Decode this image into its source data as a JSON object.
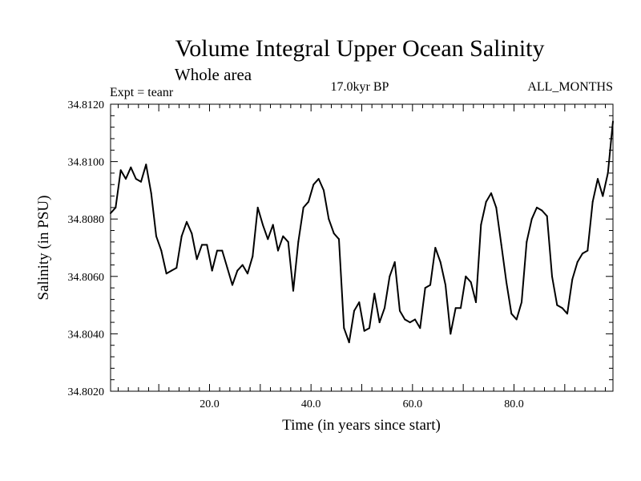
{
  "chart_data": {
    "type": "line",
    "title": "Volume Integral Upper Ocean Salinity",
    "subtitle": "Whole area",
    "experiment": "Expt = teanr",
    "period": "17.0kyr BP",
    "months": "ALL_MONTHS",
    "xlabel": "Time (in years since start)",
    "ylabel": "Salinity (in PSU)",
    "xlim": [
      0.5,
      99.5
    ],
    "ylim": [
      34.802,
      34.812
    ],
    "x_ticks": [
      20,
      40,
      60,
      80
    ],
    "x_tick_labels": [
      "20.0",
      "40.0",
      "60.0",
      "80.0"
    ],
    "y_ticks": [
      34.802,
      34.804,
      34.806,
      34.808,
      34.81,
      34.812
    ],
    "y_tick_labels": [
      "34.8020",
      "34.8040",
      "34.8060",
      "34.8080",
      "34.8100",
      "34.8120"
    ],
    "series": [
      {
        "name": "Salinity",
        "x": [
          0.5,
          1.5,
          2.5,
          3.5,
          4.5,
          5.5,
          6.5,
          7.5,
          8.5,
          9.5,
          10.5,
          11.5,
          12.5,
          13.5,
          14.5,
          15.5,
          16.5,
          17.5,
          18.5,
          19.5,
          20.5,
          21.5,
          22.5,
          23.5,
          24.5,
          25.5,
          26.5,
          27.5,
          28.5,
          29.5,
          30.5,
          31.5,
          32.5,
          33.5,
          34.5,
          35.5,
          36.5,
          37.5,
          38.5,
          39.5,
          40.5,
          41.5,
          42.5,
          43.5,
          44.5,
          45.5,
          46.5,
          47.5,
          48.5,
          49.5,
          50.5,
          51.5,
          52.5,
          53.5,
          54.5,
          55.5,
          56.5,
          57.5,
          58.5,
          59.5,
          60.5,
          61.5,
          62.5,
          63.5,
          64.5,
          65.5,
          66.5,
          67.5,
          68.5,
          69.5,
          70.5,
          71.5,
          72.5,
          73.5,
          74.5,
          75.5,
          76.5,
          77.5,
          78.5,
          79.5,
          80.5,
          81.5,
          82.5,
          83.5,
          84.5,
          85.5,
          86.5,
          87.5,
          88.5,
          89.5,
          90.5,
          91.5,
          92.5,
          93.5,
          94.5,
          95.5,
          96.5,
          97.5,
          98.5,
          99.5
        ],
        "values": [
          34.8082,
          34.8084,
          34.8097,
          34.8094,
          34.8098,
          34.8094,
          34.8093,
          34.8099,
          34.8089,
          34.8074,
          34.8069,
          34.8061,
          34.8062,
          34.8063,
          34.8074,
          34.8079,
          34.8075,
          34.8066,
          34.8071,
          34.8071,
          34.8062,
          34.8069,
          34.8069,
          34.8063,
          34.8057,
          34.8062,
          34.8064,
          34.8061,
          34.8067,
          34.8084,
          34.8078,
          34.8073,
          34.8078,
          34.8069,
          34.8074,
          34.8072,
          34.8055,
          34.8072,
          34.8084,
          34.8086,
          34.8092,
          34.8094,
          34.809,
          34.808,
          34.8075,
          34.8073,
          34.8042,
          34.8037,
          34.8048,
          34.8051,
          34.8041,
          34.8042,
          34.8054,
          34.8044,
          34.8049,
          34.806,
          34.8065,
          34.8048,
          34.8045,
          34.8044,
          34.8045,
          34.8042,
          34.8056,
          34.8057,
          34.807,
          34.8065,
          34.8057,
          34.804,
          34.8049,
          34.8049,
          34.806,
          34.8058,
          34.8051,
          34.8078,
          34.8086,
          34.8089,
          34.8084,
          34.8071,
          34.8058,
          34.8047,
          34.8045,
          34.8051,
          34.8072,
          34.808,
          34.8084,
          34.8083,
          34.8081,
          34.806,
          34.805,
          34.8049,
          34.8047,
          34.8059,
          34.8065,
          34.8068,
          34.8069,
          34.8086,
          34.8094,
          34.8088,
          34.8096,
          34.8114
        ]
      }
    ]
  }
}
